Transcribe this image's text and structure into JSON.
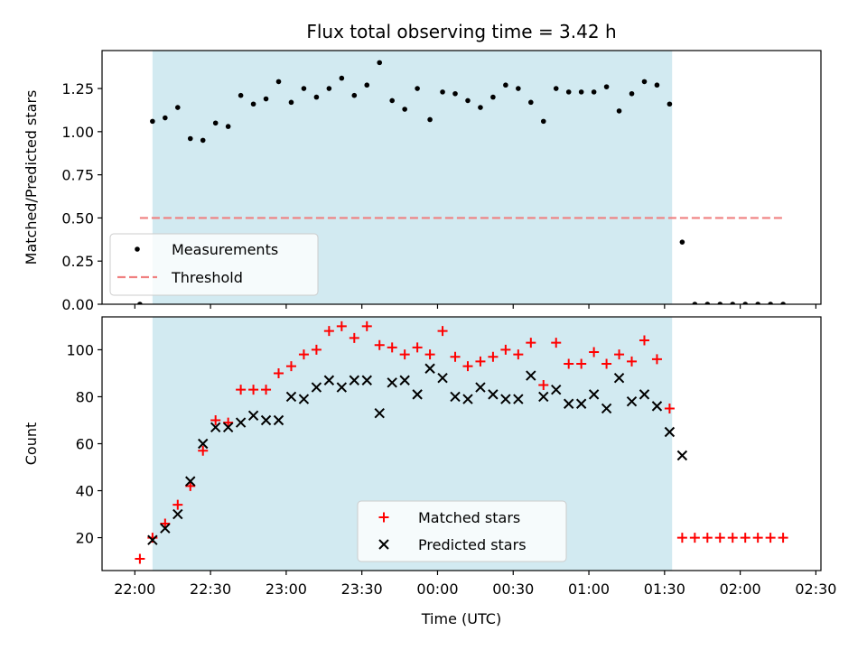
{
  "figure": {
    "title": "Flux total observing time = 3.42 h"
  },
  "chart_data": [
    {
      "type": "scatter",
      "ylabel": "Matched/Predicted stars",
      "ylim": [
        0,
        1.47
      ],
      "yticks": [
        0.0,
        0.25,
        0.5,
        0.75,
        1.0,
        1.25
      ],
      "ytick_labels": [
        "0.00",
        "0.25",
        "0.50",
        "0.75",
        "1.00",
        "1.25"
      ],
      "xlim_minutes": [
        1307,
        1592
      ],
      "legend_position": "lower-left",
      "shaded_span_minutes": [
        1327,
        1533
      ],
      "shaded_color": "#add8e6",
      "series": [
        {
          "name": "Measurements",
          "marker": "dot",
          "color": "#000000",
          "x_minutes": [
            1322,
            1327,
            1332,
            1337,
            1342,
            1347,
            1352,
            1357,
            1362,
            1367,
            1372,
            1377,
            1382,
            1387,
            1392,
            1397,
            1402,
            1407,
            1412,
            1417,
            1422,
            1427,
            1432,
            1437,
            1442,
            1447,
            1452,
            1457,
            1462,
            1467,
            1472,
            1477,
            1482,
            1487,
            1492,
            1497,
            1502,
            1507,
            1512,
            1517,
            1522,
            1527,
            1532,
            1537,
            1542,
            1547,
            1552,
            1557,
            1562,
            1567,
            1572,
            1577
          ],
          "y": [
            0.0,
            1.06,
            1.08,
            1.14,
            0.96,
            0.95,
            1.05,
            1.03,
            1.21,
            1.16,
            1.19,
            1.29,
            1.17,
            1.25,
            1.2,
            1.25,
            1.31,
            1.21,
            1.27,
            1.4,
            1.18,
            1.13,
            1.25,
            1.07,
            1.23,
            1.22,
            1.18,
            1.14,
            1.2,
            1.27,
            1.25,
            1.17,
            1.06,
            1.25,
            1.23,
            1.23,
            1.23,
            1.26,
            1.12,
            1.22,
            1.29,
            1.27,
            1.16,
            0.36,
            0.0,
            0.0,
            0.0,
            0.0,
            0.0,
            0.0,
            0.0,
            0.0
          ]
        },
        {
          "name": "Threshold",
          "marker": "dashed-line",
          "color": "#f08080",
          "x_minutes": [
            1322,
            1577
          ],
          "y": [
            0.5,
            0.5
          ]
        }
      ]
    },
    {
      "type": "scatter",
      "ylabel": "Count",
      "xlabel": "Time (UTC)",
      "ylim": [
        6,
        114
      ],
      "yticks": [
        20,
        40,
        60,
        80,
        100
      ],
      "ytick_labels": [
        "20",
        "40",
        "60",
        "80",
        "100"
      ],
      "xlim_minutes": [
        1307,
        1592
      ],
      "xticks_minutes": [
        1320,
        1350,
        1380,
        1410,
        1440,
        1470,
        1500,
        1530,
        1560,
        1590
      ],
      "xtick_labels": [
        "22:00",
        "22:30",
        "23:00",
        "23:30",
        "00:00",
        "00:30",
        "01:00",
        "01:30",
        "02:00",
        "02:30"
      ],
      "legend_position": "lower-center",
      "shaded_span_minutes": [
        1327,
        1533
      ],
      "shaded_color": "#add8e6",
      "series": [
        {
          "name": "Matched stars",
          "marker": "plus",
          "color": "#ff0000",
          "x_minutes": [
            1322,
            1327,
            1332,
            1337,
            1342,
            1347,
            1352,
            1357,
            1362,
            1367,
            1372,
            1377,
            1382,
            1387,
            1392,
            1397,
            1402,
            1407,
            1412,
            1417,
            1422,
            1427,
            1432,
            1437,
            1442,
            1447,
            1452,
            1457,
            1462,
            1467,
            1472,
            1477,
            1482,
            1487,
            1492,
            1497,
            1502,
            1507,
            1512,
            1517,
            1522,
            1527,
            1532,
            1537,
            1542,
            1547,
            1552,
            1557,
            1562,
            1567,
            1572,
            1577
          ],
          "y": [
            11,
            20,
            26,
            34,
            42,
            57,
            70,
            69,
            83,
            83,
            83,
            90,
            93,
            98,
            100,
            108,
            110,
            105,
            110,
            102,
            101,
            98,
            101,
            98,
            108,
            97,
            93,
            95,
            97,
            100,
            98,
            103,
            85,
            103,
            94,
            94,
            99,
            94,
            98,
            95,
            104,
            96,
            75,
            20,
            20,
            20,
            20,
            20,
            20,
            20,
            20,
            20
          ]
        },
        {
          "name": "Predicted stars",
          "marker": "x",
          "color": "#000000",
          "x_minutes": [
            1327,
            1332,
            1337,
            1342,
            1347,
            1352,
            1357,
            1362,
            1367,
            1372,
            1377,
            1382,
            1387,
            1392,
            1397,
            1402,
            1407,
            1412,
            1417,
            1422,
            1427,
            1432,
            1437,
            1442,
            1447,
            1452,
            1457,
            1462,
            1467,
            1472,
            1477,
            1482,
            1487,
            1492,
            1497,
            1502,
            1507,
            1512,
            1517,
            1522,
            1527,
            1532,
            1537
          ],
          "y": [
            19,
            24,
            30,
            44,
            60,
            67,
            67,
            69,
            72,
            70,
            70,
            80,
            79,
            84,
            87,
            84,
            87,
            87,
            73,
            86,
            87,
            81,
            92,
            88,
            80,
            79,
            84,
            81,
            79,
            79,
            89,
            80,
            83,
            77,
            77,
            81,
            75,
            88,
            78,
            81,
            76,
            65,
            55
          ]
        }
      ]
    }
  ]
}
